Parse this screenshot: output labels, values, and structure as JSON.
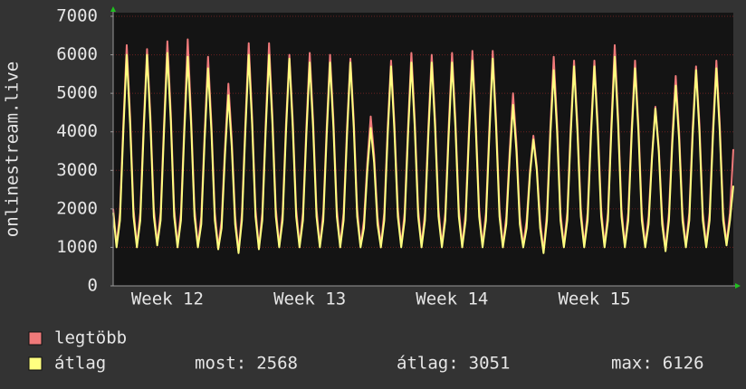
{
  "chart_data": {
    "type": "line",
    "y_label": "onlinestream.live",
    "ylim": [
      0,
      7000
    ],
    "yticks": [
      0,
      1000,
      2000,
      3000,
      4000,
      5000,
      6000,
      7000
    ],
    "grid": true,
    "categories": [
      null,
      null,
      null,
      null,
      null,
      null,
      null,
      null,
      null,
      null,
      null,
      null,
      null,
      null,
      null,
      null,
      "Week 12",
      null,
      null,
      null,
      null,
      null,
      null,
      null,
      null,
      null,
      null,
      null,
      null,
      null,
      null,
      null,
      null,
      null,
      null,
      null,
      null,
      null,
      null,
      null,
      null,
      null,
      null,
      null,
      null,
      null,
      null,
      null,
      null,
      null,
      null,
      null,
      null,
      null,
      null,
      null,
      null,
      null,
      "Week 13",
      null,
      null,
      null,
      null,
      null,
      null,
      null,
      null,
      null,
      null,
      null,
      null,
      null,
      null,
      null,
      null,
      null,
      null,
      null,
      null,
      null,
      null,
      null,
      null,
      null,
      null,
      null,
      null,
      null,
      null,
      null,
      null,
      null,
      null,
      null,
      null,
      null,
      null,
      null,
      null,
      null,
      "Week 14",
      null,
      null,
      null,
      null,
      null,
      null,
      null,
      null,
      null,
      null,
      null,
      null,
      null,
      null,
      null,
      null,
      null,
      null,
      null,
      null,
      null,
      null,
      null,
      null,
      null,
      null,
      null,
      null,
      null,
      null,
      null,
      null,
      null,
      null,
      null,
      null,
      null,
      null,
      null,
      null,
      null,
      "Week 15",
      null,
      null,
      null,
      null,
      null,
      null,
      null,
      null,
      null,
      null,
      null,
      null,
      null,
      null,
      null,
      null,
      null,
      null,
      null,
      null,
      null,
      null,
      null,
      null,
      null,
      null,
      null,
      null,
      null,
      null,
      null,
      null,
      null,
      null,
      null,
      null,
      null,
      null,
      null,
      null,
      null
    ],
    "series": [
      {
        "name": "legtöbb",
        "color": "#f07a7a",
        "values": [
          2000,
          1050,
          1900,
          4200,
          6250,
          4400,
          2000,
          1050,
          1900,
          4200,
          6150,
          4400,
          2000,
          1100,
          1900,
          4200,
          6350,
          4500,
          2000,
          1050,
          1900,
          4200,
          6400,
          4400,
          2000,
          1050,
          1800,
          4000,
          5950,
          4200,
          1900,
          1000,
          1700,
          3600,
          5250,
          3800,
          1800,
          900,
          1900,
          4200,
          6300,
          4400,
          2000,
          1000,
          1900,
          4200,
          6300,
          4400,
          2000,
          1050,
          1900,
          4200,
          6000,
          4300,
          2000,
          1050,
          1900,
          4100,
          6050,
          4300,
          2000,
          1050,
          1900,
          4100,
          6000,
          4300,
          2000,
          1050,
          1900,
          4100,
          5900,
          4300,
          2000,
          1050,
          1700,
          3200,
          4400,
          3400,
          1800,
          1050,
          1900,
          4100,
          5850,
          4200,
          2000,
          1050,
          1900,
          4100,
          6050,
          4300,
          2000,
          1050,
          1900,
          4100,
          6000,
          4300,
          2000,
          1050,
          1900,
          4100,
          6050,
          4300,
          2000,
          1050,
          1900,
          4100,
          6100,
          4300,
          2000,
          1050,
          1900,
          4100,
          6100,
          4300,
          2000,
          1050,
          1800,
          3500,
          5000,
          3700,
          1800,
          1050,
          1700,
          3000,
          3900,
          3100,
          1700,
          900,
          1900,
          4100,
          5950,
          4200,
          1900,
          1050,
          1900,
          4100,
          5850,
          4200,
          2000,
          1050,
          1900,
          4100,
          5850,
          4200,
          2000,
          1050,
          1900,
          4200,
          6250,
          4400,
          2000,
          1050,
          1900,
          4100,
          5850,
          4200,
          1900,
          1050,
          1800,
          3400,
          4650,
          3600,
          1800,
          950,
          1900,
          3900,
          5450,
          4000,
          1900,
          1050,
          1900,
          4100,
          5700,
          4200,
          1900,
          1050,
          1900,
          4100,
          5850,
          4200,
          1900,
          1100,
          1900,
          3550
        ]
      },
      {
        "name": "átlag",
        "color": "#ffff80",
        "values": [
          1900,
          1000,
          1700,
          4000,
          6000,
          4200,
          1800,
          1000,
          1700,
          4000,
          6000,
          4200,
          1800,
          1050,
          1700,
          4000,
          6050,
          4300,
          1800,
          1000,
          1700,
          4000,
          5950,
          4200,
          1800,
          1000,
          1600,
          3800,
          5650,
          4000,
          1700,
          950,
          1500,
          3400,
          4950,
          3600,
          1600,
          850,
          1700,
          4000,
          6000,
          4200,
          1800,
          950,
          1700,
          4000,
          6000,
          4200,
          1800,
          1000,
          1700,
          4000,
          5900,
          4100,
          1800,
          1000,
          1700,
          3900,
          5800,
          4100,
          1800,
          1000,
          1700,
          3900,
          5800,
          4100,
          1800,
          1000,
          1700,
          3900,
          5800,
          4100,
          1800,
          1000,
          1500,
          3000,
          4100,
          3200,
          1600,
          1000,
          1700,
          3900,
          5700,
          4000,
          1800,
          1000,
          1700,
          3900,
          5800,
          4100,
          1800,
          1000,
          1700,
          3900,
          5800,
          4100,
          1800,
          1000,
          1700,
          3900,
          5800,
          4100,
          1800,
          1000,
          1700,
          3900,
          5850,
          4100,
          1800,
          1000,
          1700,
          3900,
          5900,
          4100,
          1800,
          1000,
          1600,
          3300,
          4700,
          3500,
          1600,
          1000,
          1500,
          2900,
          3800,
          3000,
          1500,
          850,
          1700,
          3900,
          5600,
          4000,
          1700,
          1000,
          1700,
          3900,
          5700,
          4000,
          1800,
          1000,
          1700,
          3900,
          5700,
          4000,
          1800,
          1000,
          1700,
          4000,
          5950,
          4200,
          1800,
          1000,
          1700,
          3900,
          5650,
          4000,
          1700,
          1000,
          1600,
          3300,
          4600,
          3500,
          1600,
          900,
          1700,
          3700,
          5200,
          3800,
          1700,
          1000,
          1700,
          3900,
          5600,
          4000,
          1700,
          1000,
          1700,
          3900,
          5650,
          4000,
          1700,
          1050,
          1700,
          2600
        ]
      }
    ],
    "stats": [
      {
        "label": "most:",
        "value": 2568
      },
      {
        "label": "átlag:",
        "value": 3051
      },
      {
        "label": "max:",
        "value": 6126
      }
    ]
  }
}
